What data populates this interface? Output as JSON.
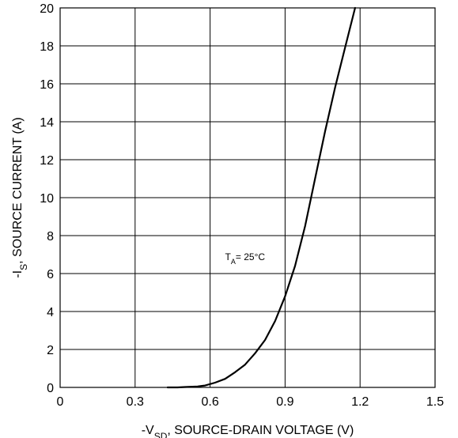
{
  "chart_data": {
    "type": "line",
    "xlabel": {
      "prefix": "-V",
      "sub": "SD",
      "suffix": ", SOURCE-DRAIN VOLTAGE (V)"
    },
    "ylabel": {
      "prefix": "-I",
      "sub": "S",
      "suffix": ", SOURCE CURRENT (A)"
    },
    "xlim": [
      0,
      1.5
    ],
    "ylim": [
      0,
      20
    ],
    "x_ticks": [
      "0",
      "0.3",
      "0.6",
      "0.9",
      "1.2",
      "1.5"
    ],
    "y_ticks": [
      "0",
      "2",
      "4",
      "6",
      "8",
      "10",
      "12",
      "14",
      "16",
      "18",
      "20"
    ],
    "grid": true,
    "annotation": {
      "prefix": "T",
      "sub": "A",
      "suffix": "= 25°C",
      "x": 0.66,
      "y": 6.7
    },
    "series": [
      {
        "x": [
          0.43,
          0.47,
          0.5,
          0.55,
          0.58,
          0.62,
          0.66,
          0.7,
          0.74,
          0.78,
          0.82,
          0.86,
          0.9,
          0.94,
          0.98,
          1.02,
          1.06,
          1.1,
          1.14,
          1.18
        ],
        "y": [
          0,
          0,
          0.02,
          0.05,
          0.1,
          0.25,
          0.45,
          0.8,
          1.2,
          1.8,
          2.5,
          3.5,
          4.8,
          6.4,
          8.5,
          11.0,
          13.5,
          15.8,
          17.9,
          20.0
        ]
      }
    ]
  }
}
